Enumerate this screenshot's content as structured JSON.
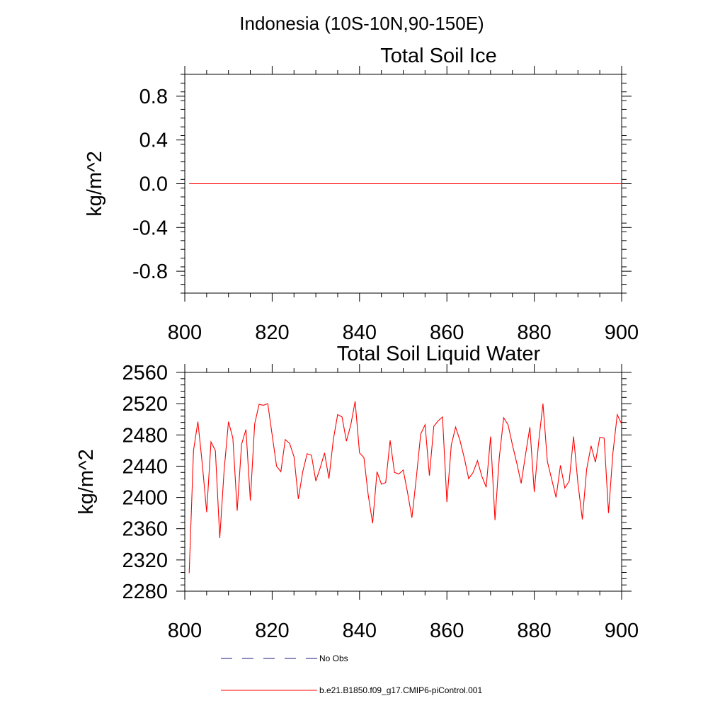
{
  "page_title": "Indonesia (10S-10N,90-150E)",
  "colors": {
    "series": "#ff0000",
    "obs": "#1a1a80",
    "axis": "#000000"
  },
  "legend": {
    "items": [
      {
        "label": "No Obs",
        "style": "dashed",
        "color": "#1a1a80"
      },
      {
        "label": "b.e21.B1850.f09_g17.CMIP6-piControl.001",
        "style": "solid",
        "color": "#ff0000"
      }
    ]
  },
  "chart_data": [
    {
      "type": "line",
      "title": "Total Soil Ice",
      "xlabel": "",
      "ylabel": "kg/m^2",
      "xlim": [
        800,
        900
      ],
      "ylim": [
        -1.0,
        1.0
      ],
      "x_ticks": [
        800,
        820,
        840,
        860,
        880,
        900
      ],
      "x_tick_labels": [
        "800",
        "820",
        "840",
        "860",
        "880",
        "900"
      ],
      "y_ticks": [
        -0.8,
        -0.4,
        0.0,
        0.4,
        0.8
      ],
      "y_tick_labels": [
        "-0.8",
        "-0.4",
        "0.0",
        "0.4",
        "0.8"
      ],
      "series": [
        {
          "name": "b.e21.B1850.f09_g17.CMIP6-piControl.001",
          "x_start": 801,
          "x_end": 900,
          "constant": 0.0
        }
      ]
    },
    {
      "type": "line",
      "title": "Total Soil Liquid Water",
      "xlabel": "",
      "ylabel": "kg/m^2",
      "xlim": [
        800,
        900
      ],
      "ylim": [
        2280,
        2560
      ],
      "x_ticks": [
        800,
        820,
        840,
        860,
        880,
        900
      ],
      "x_tick_labels": [
        "800",
        "820",
        "840",
        "860",
        "880",
        "900"
      ],
      "y_ticks": [
        2280,
        2320,
        2360,
        2400,
        2440,
        2480,
        2520,
        2560
      ],
      "y_tick_labels": [
        "2280",
        "2320",
        "2360",
        "2400",
        "2440",
        "2480",
        "2520",
        "2560"
      ],
      "series": [
        {
          "name": "b.e21.B1850.f09_g17.CMIP6-piControl.001",
          "x_start": 801,
          "values": [
            2303,
            2460,
            2497,
            2443,
            2381,
            2471,
            2460,
            2348,
            2434,
            2497,
            2476,
            2383,
            2468,
            2487,
            2396,
            2494,
            2519,
            2518,
            2520,
            2480,
            2440,
            2433,
            2474,
            2469,
            2452,
            2398,
            2433,
            2456,
            2454,
            2421,
            2438,
            2457,
            2424,
            2474,
            2506,
            2503,
            2472,
            2493,
            2523,
            2457,
            2451,
            2403,
            2367,
            2433,
            2417,
            2419,
            2473,
            2432,
            2430,
            2435,
            2406,
            2374,
            2425,
            2481,
            2493,
            2428,
            2491,
            2498,
            2503,
            2394,
            2467,
            2490,
            2473,
            2450,
            2424,
            2432,
            2447,
            2427,
            2413,
            2478,
            2371,
            2451,
            2502,
            2493,
            2467,
            2444,
            2418,
            2455,
            2490,
            2407,
            2471,
            2520,
            2446,
            2423,
            2400,
            2441,
            2412,
            2421,
            2478,
            2418,
            2372,
            2436,
            2466,
            2445,
            2477,
            2476,
            2380,
            2457,
            2506,
            2494
          ]
        }
      ]
    }
  ]
}
